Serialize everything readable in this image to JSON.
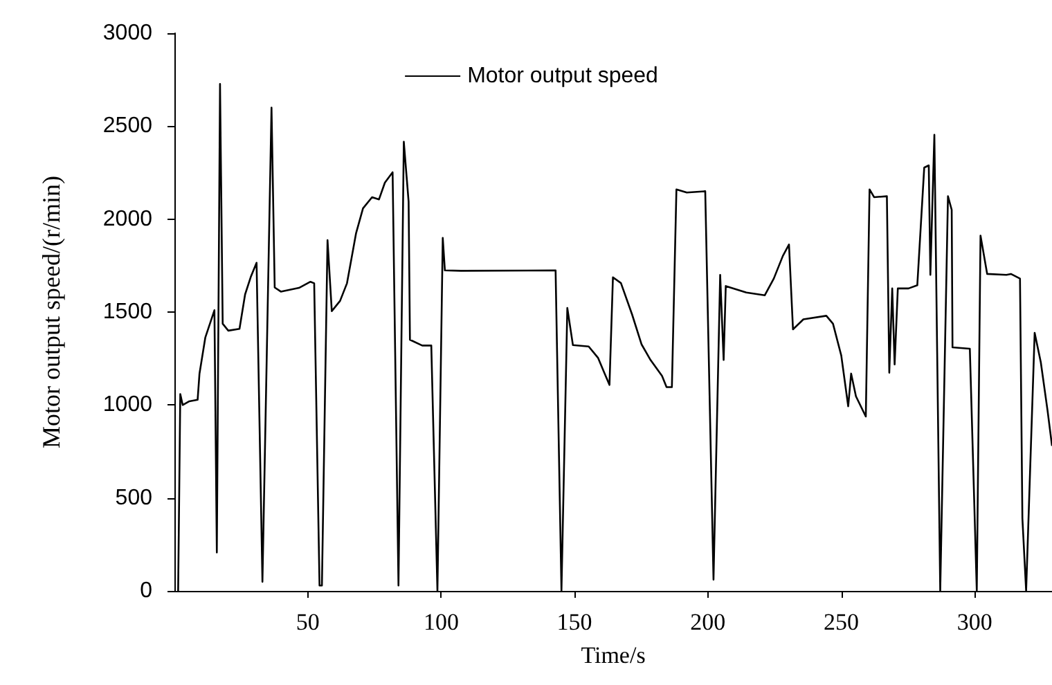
{
  "chart_data": {
    "type": "line",
    "xlabel": "Time/s",
    "ylabel": "Motor output speed/(r/min)",
    "x": [
      1.4,
      2.2,
      3.1,
      5.6,
      8.7,
      9.4,
      11.6,
      15.0,
      15.9,
      17.1,
      18.1,
      20.2,
      24.4,
      26.5,
      28.7,
      30.8,
      33.0,
      36.4,
      37.6,
      39.9,
      46.7,
      51.0,
      52.4,
      54.4,
      55.3,
      57.4,
      59.0,
      62.1,
      64.7,
      68.1,
      70.7,
      74.1,
      76.7,
      78.9,
      81.8,
      84.0,
      86.0,
      87.8,
      88.3,
      92.9,
      96.3,
      98.6,
      100.6,
      101.4,
      107.4,
      142.9,
      145.1,
      147.3,
      149.4,
      155.3,
      158.8,
      161.3,
      163.1,
      164.4,
      167.4,
      171.6,
      175.1,
      178.5,
      182.8,
      184.5,
      186.5,
      188.2,
      192.1,
      199.0,
      202.1,
      204.6,
      205.9,
      206.7,
      214.4,
      221.3,
      224.7,
      228.1,
      230.4,
      231.9,
      235.8,
      244.4,
      246.9,
      250.0,
      252.6,
      253.7,
      255.5,
      259.2,
      260.6,
      262.3,
      267.1,
      268.0,
      269.1,
      270.0,
      271.2,
      275.2,
      278.5,
      281.1,
      282.8,
      283.4,
      284.9,
      287.1,
      290.0,
      291.4,
      291.7,
      298.2,
      300.8,
      302.2,
      304.7,
      311.9,
      313.6,
      317.0,
      317.9,
      319.3,
      322.5,
      324.8,
      327.3,
      329
    ],
    "series": [
      {
        "name": "Motor output speed",
        "color": "#000000",
        "values": [
          0,
          1059,
          1000,
          1020,
          1028,
          1169,
          1364,
          1510,
          207,
          2727,
          1437,
          1400,
          1410,
          1595,
          1692,
          1765,
          49,
          2600,
          1632,
          1610,
          1630,
          1663,
          1655,
          29,
          29,
          1887,
          1505,
          1560,
          1655,
          1924,
          2058,
          2118,
          2106,
          2196,
          2252,
          29,
          2416,
          2094,
          1351,
          1320,
          1320,
          0,
          1899,
          1724,
          1722,
          1724,
          0,
          1522,
          1322,
          1315,
          1254,
          1169,
          1108,
          1687,
          1656,
          1486,
          1327,
          1242,
          1157,
          1096,
          1096,
          2160,
          2143,
          2150,
          61,
          1700,
          1242,
          1640,
          1605,
          1590,
          1680,
          1802,
          1863,
          1407,
          1461,
          1480,
          1437,
          1266,
          993,
          1169,
          1047,
          938,
          2160,
          2118,
          2123,
          1174,
          1627,
          1218,
          1627,
          1627,
          1644,
          2277,
          2289,
          1700,
          2454,
          0,
          2123,
          2050,
          1310,
          1303,
          0,
          1911,
          1705,
          1700,
          1705,
          1680,
          390,
          0,
          1388,
          1230,
          974,
          780
        ]
      }
    ],
    "xlim": [
      0,
      329
    ],
    "xticks": [
      50,
      100,
      150,
      200,
      250,
      300
    ],
    "ylim": [
      0,
      3000
    ],
    "yticks": [
      0,
      500,
      1000,
      1500,
      2000,
      2500,
      3000
    ],
    "grid": false,
    "legend": "top",
    "marker": "none",
    "line_style": "solid"
  }
}
